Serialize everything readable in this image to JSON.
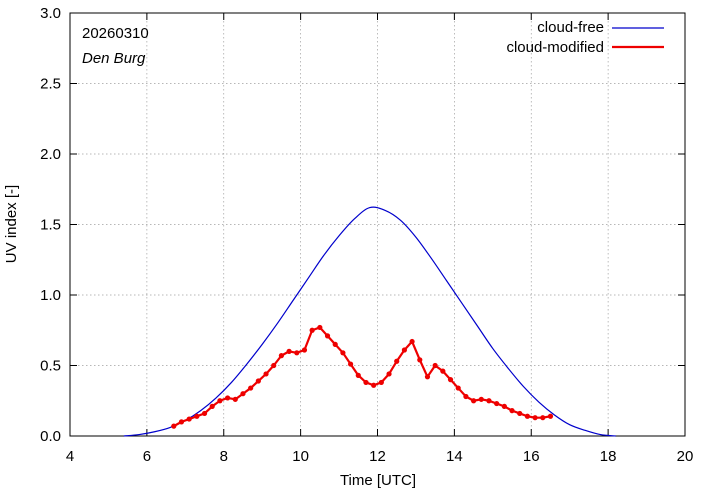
{
  "chart_data": {
    "type": "line",
    "annotations": {
      "date": "20260310",
      "location": "Den Burg"
    },
    "xlabel": "Time  [UTC]",
    "ylabel": "UV index  [-]",
    "xlim": [
      4,
      20
    ],
    "ylim": [
      0,
      3.0
    ],
    "xticks": [
      4,
      6,
      8,
      10,
      12,
      14,
      16,
      18,
      20
    ],
    "xtick_labels": [
      "4",
      "6",
      "8",
      "10",
      "12",
      "14",
      "16",
      "18",
      "20"
    ],
    "yticks": [
      0,
      0.5,
      1.0,
      1.5,
      2.0,
      2.5,
      3.0
    ],
    "ytick_labels": [
      "0.0",
      "0.5",
      "1.0",
      "1.5",
      "2.0",
      "2.5",
      "3.0"
    ],
    "legend_position": "top-right",
    "series": [
      {
        "name": "cloud-free",
        "color": "#0000cc",
        "markers": false,
        "x": [
          5.4,
          5.8,
          6.2,
          6.6,
          7.0,
          7.4,
          7.8,
          8.2,
          8.6,
          9.0,
          9.4,
          9.8,
          10.2,
          10.6,
          11.0,
          11.4,
          11.8,
          12.2,
          12.6,
          13.0,
          13.4,
          13.8,
          14.2,
          14.6,
          15.0,
          15.4,
          15.8,
          16.2,
          16.6,
          17.0,
          17.4,
          17.8,
          18.2
        ],
        "values": [
          0.0,
          0.01,
          0.03,
          0.06,
          0.11,
          0.18,
          0.27,
          0.38,
          0.51,
          0.65,
          0.8,
          0.96,
          1.12,
          1.28,
          1.42,
          1.54,
          1.62,
          1.6,
          1.53,
          1.41,
          1.26,
          1.1,
          0.94,
          0.78,
          0.62,
          0.48,
          0.35,
          0.24,
          0.15,
          0.08,
          0.04,
          0.01,
          0.0
        ]
      },
      {
        "name": "cloud-modified",
        "color": "#ee0000",
        "markers": true,
        "x": [
          6.7,
          6.9,
          7.1,
          7.3,
          7.5,
          7.7,
          7.9,
          8.1,
          8.3,
          8.5,
          8.7,
          8.9,
          9.1,
          9.3,
          9.5,
          9.7,
          9.9,
          10.1,
          10.3,
          10.5,
          10.7,
          10.9,
          11.1,
          11.3,
          11.5,
          11.7,
          11.9,
          12.1,
          12.3,
          12.5,
          12.7,
          12.9,
          13.1,
          13.3,
          13.5,
          13.7,
          13.9,
          14.1,
          14.3,
          14.5,
          14.7,
          14.9,
          15.1,
          15.3,
          15.5,
          15.7,
          15.9,
          16.1,
          16.3,
          16.5
        ],
        "values": [
          0.07,
          0.1,
          0.12,
          0.14,
          0.16,
          0.21,
          0.25,
          0.27,
          0.26,
          0.3,
          0.34,
          0.39,
          0.44,
          0.5,
          0.57,
          0.6,
          0.59,
          0.61,
          0.75,
          0.77,
          0.71,
          0.65,
          0.59,
          0.51,
          0.43,
          0.38,
          0.36,
          0.38,
          0.44,
          0.53,
          0.61,
          0.67,
          0.54,
          0.42,
          0.5,
          0.46,
          0.4,
          0.34,
          0.28,
          0.25,
          0.26,
          0.25,
          0.23,
          0.21,
          0.18,
          0.16,
          0.14,
          0.13,
          0.13,
          0.14
        ]
      }
    ]
  }
}
